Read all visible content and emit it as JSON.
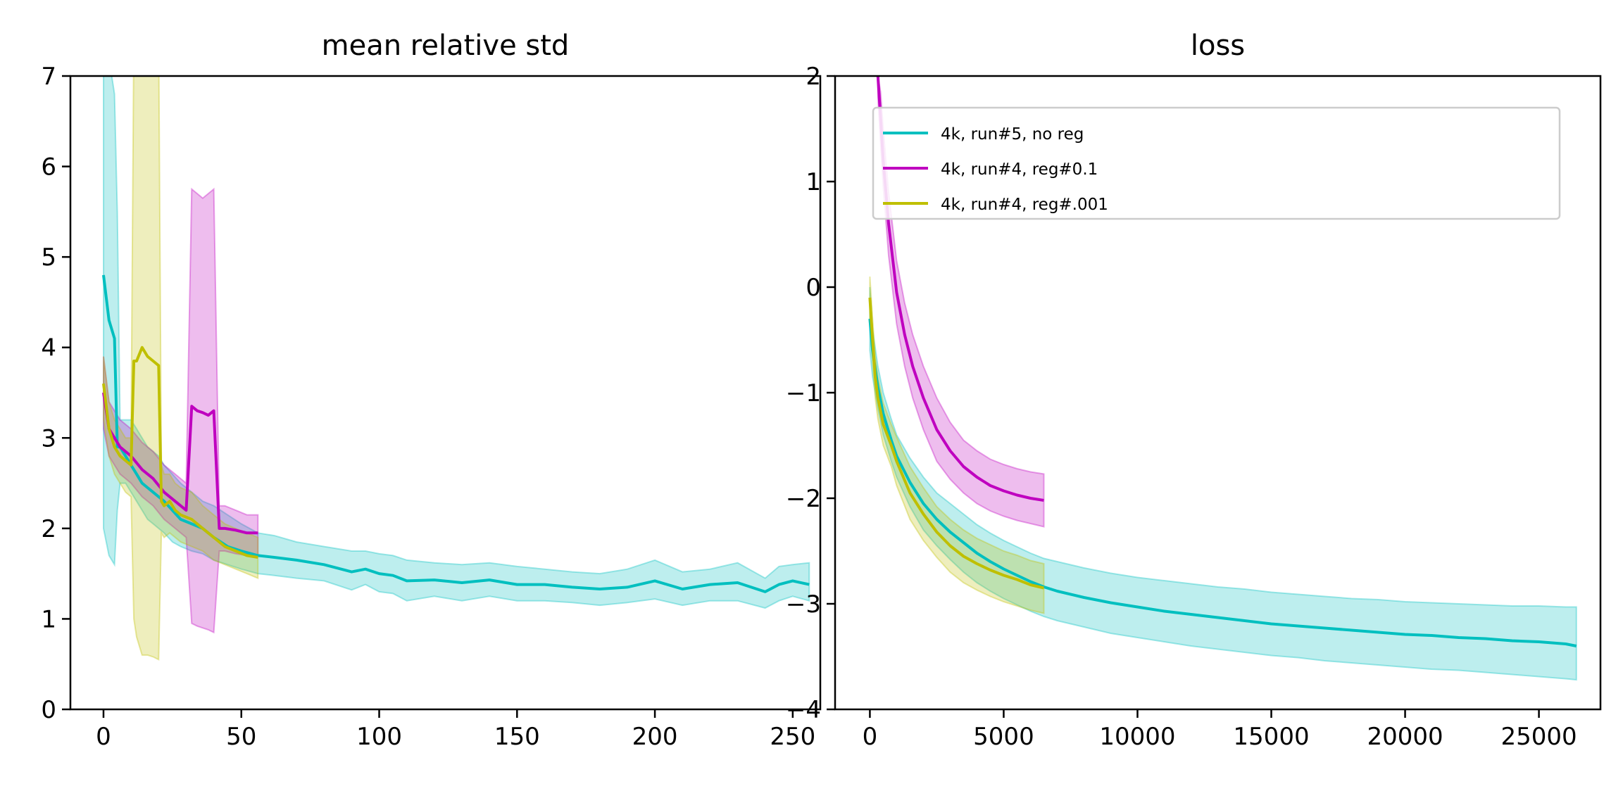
{
  "chart_data": [
    {
      "type": "line",
      "title": "mean relative std",
      "xlabel": "",
      "ylabel": "",
      "xlim": [
        -12,
        260
      ],
      "ylim": [
        0,
        7
      ],
      "xticks": [
        0,
        50,
        100,
        150,
        200,
        250
      ],
      "yticks": [
        0,
        1,
        2,
        3,
        4,
        5,
        6,
        7
      ],
      "grid": false,
      "series": [
        {
          "name": "4k, run#5, no reg",
          "color": "#00bfbf",
          "x": [
            0,
            2,
            4,
            5,
            6,
            8,
            10,
            12,
            14,
            16,
            18,
            20,
            22,
            25,
            28,
            32,
            36,
            40,
            45,
            50,
            56,
            62,
            70,
            80,
            90,
            95,
            100,
            105,
            110,
            120,
            130,
            140,
            150,
            160,
            170,
            180,
            190,
            200,
            210,
            220,
            230,
            240,
            245,
            250,
            256
          ],
          "values": [
            4.8,
            4.3,
            4.1,
            2.9,
            2.9,
            2.8,
            2.7,
            2.6,
            2.5,
            2.45,
            2.4,
            2.35,
            2.3,
            2.2,
            2.1,
            2.05,
            2.0,
            1.9,
            1.8,
            1.75,
            1.7,
            1.68,
            1.65,
            1.6,
            1.52,
            1.55,
            1.5,
            1.48,
            1.42,
            1.43,
            1.4,
            1.43,
            1.38,
            1.38,
            1.35,
            1.33,
            1.35,
            1.42,
            1.33,
            1.38,
            1.4,
            1.3,
            1.38,
            1.42,
            1.38
          ],
          "band_upper": [
            7.5,
            7.2,
            6.8,
            5.5,
            3.2,
            3.2,
            3.2,
            3.1,
            3.0,
            2.9,
            2.85,
            2.8,
            2.7,
            2.6,
            2.5,
            2.4,
            2.3,
            2.25,
            2.15,
            2.05,
            1.95,
            1.92,
            1.85,
            1.8,
            1.75,
            1.75,
            1.72,
            1.7,
            1.65,
            1.62,
            1.6,
            1.62,
            1.58,
            1.55,
            1.52,
            1.5,
            1.55,
            1.65,
            1.52,
            1.55,
            1.62,
            1.45,
            1.58,
            1.6,
            1.62
          ],
          "band_lower": [
            2.0,
            1.7,
            1.6,
            2.2,
            2.5,
            2.5,
            2.4,
            2.3,
            2.2,
            2.1,
            2.05,
            2.0,
            1.95,
            1.85,
            1.8,
            1.75,
            1.72,
            1.65,
            1.6,
            1.55,
            1.5,
            1.48,
            1.45,
            1.42,
            1.32,
            1.38,
            1.3,
            1.28,
            1.2,
            1.25,
            1.2,
            1.25,
            1.2,
            1.2,
            1.18,
            1.15,
            1.18,
            1.22,
            1.15,
            1.2,
            1.2,
            1.12,
            1.2,
            1.25,
            1.2
          ]
        },
        {
          "name": "4k, run#4, reg#0.1",
          "color": "#bf00bf",
          "x": [
            0,
            2,
            4,
            6,
            8,
            10,
            14,
            18,
            22,
            26,
            30,
            32,
            34,
            36,
            38,
            40,
            42,
            44,
            48,
            52,
            56
          ],
          "values": [
            3.5,
            3.1,
            3.0,
            2.9,
            2.85,
            2.8,
            2.65,
            2.55,
            2.4,
            2.3,
            2.2,
            3.35,
            3.3,
            3.28,
            3.25,
            3.3,
            2.0,
            2.0,
            1.98,
            1.95,
            1.95
          ],
          "band_upper": [
            3.9,
            3.4,
            3.3,
            3.2,
            3.15,
            3.1,
            2.95,
            2.85,
            2.7,
            2.6,
            2.5,
            5.75,
            5.7,
            5.65,
            5.7,
            5.75,
            2.25,
            2.25,
            2.2,
            2.15,
            2.15
          ],
          "band_lower": [
            3.1,
            2.8,
            2.7,
            2.6,
            2.55,
            2.5,
            2.35,
            2.25,
            2.1,
            2.0,
            1.9,
            0.95,
            0.92,
            0.9,
            0.88,
            0.85,
            1.75,
            1.75,
            1.72,
            1.7,
            1.7
          ]
        },
        {
          "name": "4k, run#4, reg#.001",
          "color": "#bfbf00",
          "x": [
            0,
            2,
            4,
            6,
            8,
            10,
            11,
            12,
            14,
            16,
            18,
            20,
            21,
            22,
            24,
            26,
            28,
            32,
            36,
            40,
            44,
            48,
            52,
            56
          ],
          "values": [
            3.6,
            3.1,
            2.9,
            2.8,
            2.75,
            2.7,
            3.85,
            3.85,
            4.0,
            3.9,
            3.85,
            3.8,
            2.3,
            2.25,
            2.3,
            2.2,
            2.15,
            2.1,
            2.0,
            1.9,
            1.8,
            1.75,
            1.7,
            1.68
          ],
          "band_upper": [
            3.9,
            3.4,
            3.2,
            3.1,
            3.0,
            3.0,
            7.5,
            7.5,
            7.5,
            7.5,
            7.5,
            7.5,
            2.7,
            2.6,
            2.6,
            2.5,
            2.45,
            2.4,
            2.25,
            2.15,
            2.05,
            2.0,
            1.95,
            1.9
          ],
          "band_lower": [
            3.2,
            2.8,
            2.6,
            2.5,
            2.4,
            2.35,
            1.0,
            0.8,
            0.6,
            0.6,
            0.58,
            0.55,
            1.95,
            1.9,
            1.95,
            1.9,
            1.85,
            1.8,
            1.75,
            1.65,
            1.6,
            1.55,
            1.5,
            1.45
          ]
        }
      ]
    },
    {
      "type": "line",
      "title": "loss",
      "xlabel": "",
      "ylabel": "",
      "xlim": [
        -1300,
        27300
      ],
      "ylim": [
        -4,
        2
      ],
      "xticks": [
        0,
        5000,
        10000,
        15000,
        20000,
        25000
      ],
      "yticks": [
        -4,
        -3,
        -2,
        -1,
        0,
        1,
        2
      ],
      "grid": false,
      "legend_position": "upper-right",
      "series": [
        {
          "name": "4k, run#5, no reg",
          "color": "#00bfbf",
          "x": [
            0,
            100,
            300,
            500,
            800,
            1000,
            1500,
            2000,
            2500,
            3000,
            3500,
            4000,
            4500,
            5000,
            5500,
            6000,
            6500,
            7000,
            8000,
            9000,
            10000,
            11000,
            12000,
            13000,
            14000,
            15000,
            16000,
            17000,
            18000,
            19000,
            20000,
            21000,
            22000,
            23000,
            24000,
            25000,
            26000,
            26400
          ],
          "values": [
            -0.3,
            -0.6,
            -0.95,
            -1.2,
            -1.45,
            -1.6,
            -1.85,
            -2.05,
            -2.2,
            -2.32,
            -2.42,
            -2.52,
            -2.6,
            -2.67,
            -2.73,
            -2.79,
            -2.84,
            -2.88,
            -2.94,
            -2.99,
            -3.03,
            -3.07,
            -3.1,
            -3.13,
            -3.16,
            -3.19,
            -3.21,
            -3.23,
            -3.25,
            -3.27,
            -3.29,
            -3.3,
            -3.32,
            -3.33,
            -3.35,
            -3.36,
            -3.38,
            -3.4
          ],
          "band_upper": [
            0.0,
            -0.4,
            -0.75,
            -1.0,
            -1.25,
            -1.4,
            -1.62,
            -1.8,
            -1.95,
            -2.05,
            -2.15,
            -2.25,
            -2.33,
            -2.4,
            -2.46,
            -2.52,
            -2.57,
            -2.6,
            -2.66,
            -2.71,
            -2.75,
            -2.78,
            -2.81,
            -2.84,
            -2.86,
            -2.89,
            -2.91,
            -2.93,
            -2.95,
            -2.96,
            -2.98,
            -2.99,
            -3.0,
            -3.01,
            -3.02,
            -3.02,
            -3.03,
            -3.03
          ],
          "band_lower": [
            -0.6,
            -0.85,
            -1.15,
            -1.4,
            -1.65,
            -1.8,
            -2.08,
            -2.3,
            -2.45,
            -2.58,
            -2.7,
            -2.8,
            -2.88,
            -2.95,
            -3.01,
            -3.07,
            -3.12,
            -3.16,
            -3.22,
            -3.28,
            -3.32,
            -3.36,
            -3.4,
            -3.43,
            -3.46,
            -3.49,
            -3.51,
            -3.54,
            -3.56,
            -3.58,
            -3.6,
            -3.62,
            -3.63,
            -3.65,
            -3.67,
            -3.69,
            -3.71,
            -3.72
          ]
        },
        {
          "name": "4k, run#4, reg#0.1",
          "color": "#bf00bf",
          "x": [
            300,
            400,
            500,
            700,
            1000,
            1300,
            1600,
            2000,
            2500,
            3000,
            3500,
            4000,
            4500,
            5000,
            5500,
            6000,
            6500
          ],
          "values": [
            2.0,
            1.6,
            1.2,
            0.6,
            -0.05,
            -0.45,
            -0.75,
            -1.05,
            -1.35,
            -1.55,
            -1.7,
            -1.8,
            -1.88,
            -1.93,
            -1.97,
            -2.0,
            -2.02
          ],
          "band_upper": [
            2.0,
            1.85,
            1.5,
            0.9,
            0.25,
            -0.15,
            -0.45,
            -0.75,
            -1.05,
            -1.28,
            -1.45,
            -1.55,
            -1.63,
            -1.68,
            -1.72,
            -1.75,
            -1.77
          ],
          "band_lower": [
            1.8,
            1.35,
            0.95,
            0.3,
            -0.35,
            -0.75,
            -1.05,
            -1.35,
            -1.65,
            -1.82,
            -1.95,
            -2.05,
            -2.12,
            -2.17,
            -2.21,
            -2.24,
            -2.27
          ]
        },
        {
          "name": "4k, run#4, reg#.001",
          "color": "#bfbf00",
          "x": [
            0,
            100,
            200,
            300,
            500,
            800,
            1000,
            1500,
            2000,
            2500,
            3000,
            3500,
            4000,
            4500,
            5000,
            5500,
            6000,
            6500
          ],
          "values": [
            -0.1,
            -0.5,
            -0.85,
            -1.05,
            -1.3,
            -1.5,
            -1.65,
            -1.95,
            -2.15,
            -2.32,
            -2.45,
            -2.55,
            -2.62,
            -2.68,
            -2.73,
            -2.77,
            -2.82,
            -2.85
          ],
          "band_upper": [
            0.1,
            -0.3,
            -0.65,
            -0.85,
            -1.1,
            -1.3,
            -1.42,
            -1.7,
            -1.9,
            -2.08,
            -2.2,
            -2.3,
            -2.38,
            -2.44,
            -2.5,
            -2.54,
            -2.59,
            -2.62
          ],
          "band_lower": [
            -0.3,
            -0.7,
            -1.05,
            -1.25,
            -1.5,
            -1.7,
            -1.88,
            -2.2,
            -2.4,
            -2.56,
            -2.7,
            -2.8,
            -2.87,
            -2.93,
            -2.98,
            -3.02,
            -3.06,
            -3.09
          ]
        }
      ]
    }
  ]
}
